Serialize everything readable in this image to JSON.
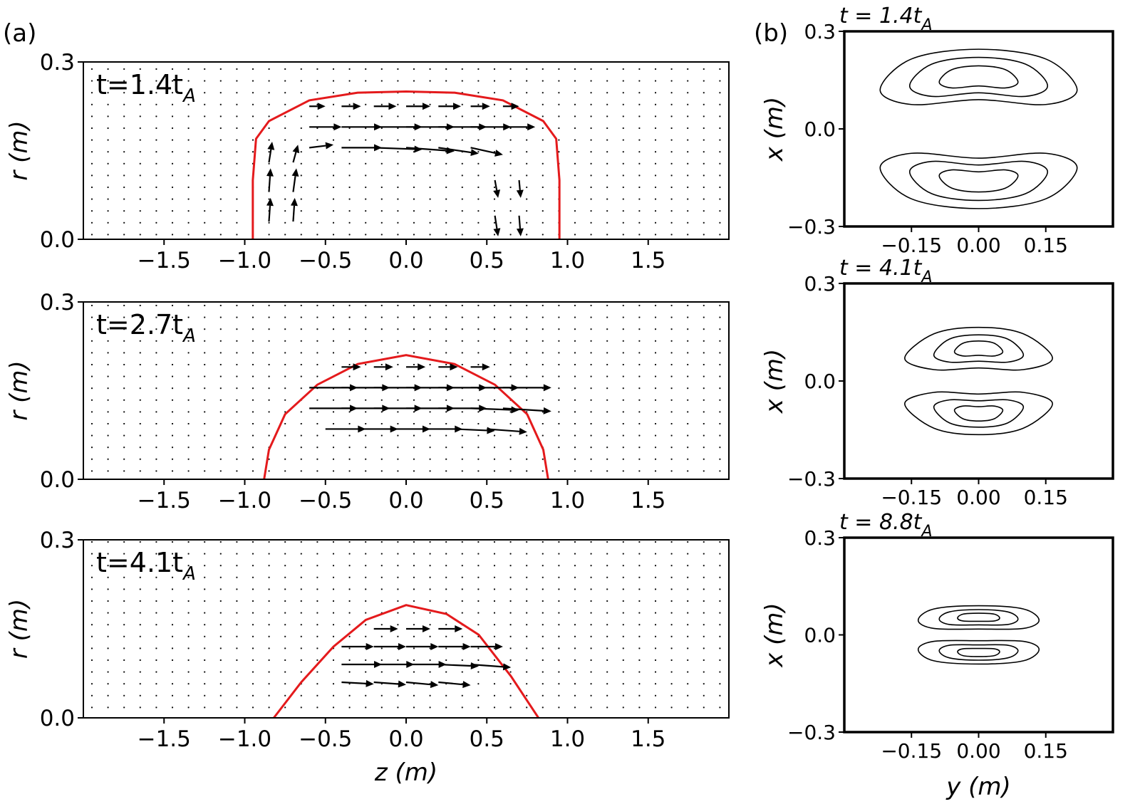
{
  "chart_data": [
    {
      "type": "quiver",
      "panel_label": "(a)",
      "annotation": "t=1.4t",
      "annotation_sub": "A",
      "ylabel": "r (m)",
      "xlim": [
        -2,
        2
      ],
      "ylim": [
        0,
        0.3
      ],
      "xticks": [
        {
          "value": -1.5,
          "label": "−1.5"
        },
        {
          "value": -1.0,
          "label": "−1.0"
        },
        {
          "value": -0.5,
          "label": "−0.5"
        },
        {
          "value": 0,
          "label": "0.0"
        },
        0.5,
        {
          "value": 1.0,
          "label": "1.0"
        },
        1.5
      ],
      "yticks": [
        {
          "value": 0,
          "label": "0.0"
        },
        0.3
      ],
      "boundary": {
        "color": "#e41a1c",
        "z": [
          -0.95,
          -0.95,
          -0.93,
          -0.85,
          -0.6,
          -0.3,
          0,
          0.3,
          0.6,
          0.85,
          0.93,
          0.95,
          0.95
        ],
        "r": [
          0,
          0.1,
          0.17,
          0.2,
          0.235,
          0.248,
          0.25,
          0.248,
          0.235,
          0.2,
          0.17,
          0.1,
          0
        ]
      },
      "arrows": {
        "color": "#000000",
        "z": [
          -0.6,
          -0.4,
          -0.2,
          0,
          0.2,
          0.4,
          0.6,
          -0.6,
          -0.4,
          -0.2,
          0,
          0.2,
          0.4,
          0.6,
          -0.6,
          -0.4,
          -0.2,
          0,
          0.2,
          0.4,
          -0.85,
          -0.85,
          -0.85,
          -0.7,
          -0.7,
          -0.7,
          0.55,
          0.55,
          0.7,
          0.7
        ],
        "r": [
          0.225,
          0.225,
          0.225,
          0.225,
          0.225,
          0.225,
          0.225,
          0.19,
          0.19,
          0.19,
          0.19,
          0.19,
          0.19,
          0.19,
          0.155,
          0.155,
          0.155,
          0.155,
          0.155,
          0.155,
          0.03,
          0.08,
          0.13,
          0.03,
          0.08,
          0.13,
          0.04,
          0.1,
          0.04,
          0.1
        ],
        "u": [
          0.1,
          0.12,
          0.14,
          0.15,
          0.14,
          0.12,
          0.1,
          0.2,
          0.25,
          0.3,
          0.3,
          0.3,
          0.25,
          0.2,
          0.15,
          0.25,
          0.3,
          0.3,
          0.25,
          0.2,
          0.01,
          0.01,
          0.02,
          0.01,
          0.02,
          0.03,
          0.02,
          0.02,
          0.01,
          0.01
        ],
        "v": [
          0,
          0,
          0,
          0,
          0,
          0,
          0,
          0,
          0,
          0,
          0,
          0,
          0,
          0,
          0.005,
          0,
          -0.003,
          -0.006,
          -0.01,
          -0.012,
          0.04,
          0.04,
          0.035,
          0.04,
          0.04,
          0.03,
          -0.035,
          -0.03,
          -0.035,
          -0.03
        ]
      }
    },
    {
      "type": "quiver",
      "annotation": "t=2.7t",
      "annotation_sub": "A",
      "ylabel": "r (m)",
      "xlim": [
        -2,
        2
      ],
      "ylim": [
        0,
        0.3
      ],
      "xticks": [
        {
          "value": -1.5,
          "label": "−1.5"
        },
        {
          "value": -1.0,
          "label": "−1.0"
        },
        {
          "value": -0.5,
          "label": "−0.5"
        },
        {
          "value": 0,
          "label": "0.0"
        },
        0.5,
        {
          "value": 1.0,
          "label": "1.0"
        },
        1.5
      ],
      "yticks": [
        {
          "value": 0,
          "label": "0.0"
        },
        0.3
      ],
      "boundary": {
        "color": "#e41a1c",
        "z": [
          -0.88,
          -0.85,
          -0.75,
          -0.55,
          -0.3,
          0,
          0.3,
          0.55,
          0.75,
          0.85,
          0.88
        ],
        "r": [
          0,
          0.05,
          0.11,
          0.16,
          0.195,
          0.21,
          0.195,
          0.16,
          0.11,
          0.05,
          0
        ]
      },
      "arrows": {
        "color": "#000000",
        "z": [
          -0.4,
          -0.2,
          0,
          0.2,
          0.4,
          -0.6,
          -0.4,
          -0.2,
          0,
          0.2,
          0.4,
          0.6,
          -0.6,
          -0.4,
          -0.2,
          0,
          0.2,
          0.4,
          0.6,
          -0.5,
          -0.3,
          -0.1,
          0.1,
          0.3,
          0.5
        ],
        "r": [
          0.19,
          0.19,
          0.19,
          0.19,
          0.19,
          0.155,
          0.155,
          0.155,
          0.155,
          0.155,
          0.155,
          0.155,
          0.12,
          0.12,
          0.12,
          0.12,
          0.12,
          0.12,
          0.12,
          0.085,
          0.085,
          0.085,
          0.085,
          0.085,
          0.085
        ],
        "u": [
          0.12,
          0.12,
          0.12,
          0.12,
          0.12,
          0.3,
          0.3,
          0.3,
          0.3,
          0.3,
          0.3,
          0.3,
          0.3,
          0.3,
          0.3,
          0.3,
          0.3,
          0.3,
          0.3,
          0.25,
          0.25,
          0.25,
          0.25,
          0.25,
          0.25
        ],
        "v": [
          0,
          0,
          0,
          0,
          0,
          0,
          0,
          0,
          0,
          0,
          0,
          0,
          0,
          0,
          0,
          0,
          0,
          -0.003,
          -0.005,
          0,
          0,
          0,
          0,
          -0.003,
          -0.005
        ]
      }
    },
    {
      "type": "quiver",
      "annotation": "t=4.1t",
      "annotation_sub": "A",
      "ylabel": "r (m)",
      "xlabel": "z (m)",
      "xlim": [
        -2,
        2
      ],
      "ylim": [
        0,
        0.3
      ],
      "xticks": [
        {
          "value": -1.5,
          "label": "−1.5"
        },
        {
          "value": -1.0,
          "label": "−1.0"
        },
        {
          "value": -0.5,
          "label": "−0.5"
        },
        {
          "value": 0,
          "label": "0.0"
        },
        0.5,
        {
          "value": 1.0,
          "label": "1.0"
        },
        1.5
      ],
      "yticks": [
        {
          "value": 0,
          "label": "0.0"
        },
        0.3
      ],
      "boundary": {
        "color": "#e41a1c",
        "z": [
          -0.82,
          -0.65,
          -0.45,
          -0.25,
          0,
          0.25,
          0.45,
          0.65,
          0.82
        ],
        "r": [
          0,
          0.06,
          0.12,
          0.165,
          0.19,
          0.175,
          0.14,
          0.07,
          0
        ]
      },
      "arrows": {
        "color": "#000000",
        "z": [
          -0.2,
          0,
          0.2,
          -0.4,
          -0.2,
          0,
          0.2,
          0.4,
          -0.4,
          -0.2,
          0,
          0.2,
          0.4,
          -0.4,
          -0.2,
          0,
          0.2
        ],
        "r": [
          0.15,
          0.15,
          0.15,
          0.12,
          0.12,
          0.12,
          0.12,
          0.12,
          0.09,
          0.09,
          0.09,
          0.09,
          0.09,
          0.06,
          0.06,
          0.06,
          0.06
        ],
        "u": [
          0.15,
          0.15,
          0.15,
          0.2,
          0.2,
          0.2,
          0.2,
          0.2,
          0.25,
          0.25,
          0.25,
          0.25,
          0.25,
          0.2,
          0.2,
          0.2,
          0.2
        ],
        "v": [
          0,
          0,
          0,
          0,
          0,
          0,
          0,
          0,
          0,
          0,
          0,
          -0.003,
          -0.005,
          -0.003,
          -0.004,
          -0.005,
          -0.005
        ]
      }
    },
    {
      "type": "contour",
      "panel_label": "(b)",
      "title": "t = 1.4t",
      "title_sub": "A",
      "ylabel": "x (m)",
      "xlim": [
        -0.3,
        0.3
      ],
      "ylim": [
        -0.3,
        0.3
      ],
      "xticks": [
        {
          "value": -0.15,
          "label": "−0.15"
        },
        {
          "value": 0,
          "label": "0.00"
        },
        0.15
      ],
      "yticks": [
        {
          "value": -0.3,
          "label": "−0.3"
        },
        {
          "value": 0,
          "label": "0.0"
        },
        0.3
      ],
      "color": "#000000",
      "contours": [
        {
          "y": [
            -0.22,
            -0.15,
            0,
            0.15,
            0.22,
            0.15,
            0,
            -0.15
          ],
          "x": [
            0.12,
            0.215,
            0.245,
            0.215,
            0.12,
            0.075,
            0.09,
            0.075
          ]
        },
        {
          "y": [
            -0.154,
            -0.105,
            0,
            0.105,
            0.154,
            0.105,
            0,
            -0.105
          ],
          "x": [
            0.132,
            0.199,
            0.22,
            0.199,
            0.132,
            0.1,
            0.111,
            0.1
          ]
        },
        {
          "y": [
            -0.088,
            -0.06,
            0,
            0.06,
            0.088,
            0.06,
            0,
            -0.06
          ],
          "x": [
            0.144,
            0.182,
            0.194,
            0.182,
            0.144,
            0.126,
            0.132,
            0.126
          ]
        },
        {
          "y": [
            -0.22,
            -0.15,
            0,
            0.15,
            0.22,
            0.15,
            0,
            -0.15
          ],
          "x": [
            -0.12,
            -0.215,
            -0.245,
            -0.215,
            -0.12,
            -0.075,
            -0.09,
            -0.075
          ]
        },
        {
          "y": [
            -0.154,
            -0.105,
            0,
            0.105,
            0.154,
            0.105,
            0,
            -0.105
          ],
          "x": [
            -0.132,
            -0.199,
            -0.22,
            -0.199,
            -0.132,
            -0.1,
            -0.111,
            -0.1
          ]
        },
        {
          "y": [
            -0.088,
            -0.06,
            0,
            0.06,
            0.088,
            0.06,
            0,
            -0.06
          ],
          "x": [
            -0.144,
            -0.182,
            -0.194,
            -0.182,
            -0.144,
            -0.126,
            -0.132,
            -0.126
          ]
        }
      ]
    },
    {
      "type": "contour",
      "title": "t = 4.1t",
      "title_sub": "A",
      "ylabel": "x (m)",
      "xlim": [
        -0.3,
        0.3
      ],
      "ylim": [
        -0.3,
        0.3
      ],
      "xticks": [
        {
          "value": -0.15,
          "label": "−0.15"
        },
        {
          "value": 0,
          "label": "0.00"
        },
        0.15
      ],
      "yticks": [
        {
          "value": -0.3,
          "label": "−0.3"
        },
        {
          "value": 0,
          "label": "0.0"
        },
        0.3
      ],
      "color": "#000000",
      "contours": [
        {
          "y": [
            -0.165,
            -0.1,
            0,
            0.1,
            0.165,
            0.1,
            0,
            -0.1
          ],
          "x": [
            0.07,
            0.145,
            0.165,
            0.145,
            0.07,
            0.035,
            0.04,
            0.035
          ]
        },
        {
          "y": [
            -0.1,
            -0.065,
            0,
            0.065,
            0.1,
            0.065,
            0,
            -0.065
          ],
          "x": [
            0.08,
            0.129,
            0.142,
            0.129,
            0.08,
            0.058,
            0.061,
            0.058
          ]
        },
        {
          "y": [
            -0.054,
            -0.035,
            0,
            0.035,
            0.054,
            0.035,
            0,
            -0.035
          ],
          "x": [
            0.09,
            0.116,
            0.123,
            0.116,
            0.09,
            0.077,
            0.079,
            0.077
          ]
        },
        {
          "y": [
            -0.165,
            -0.1,
            0,
            0.1,
            0.165,
            0.1,
            0,
            -0.1
          ],
          "x": [
            -0.07,
            -0.145,
            -0.165,
            -0.145,
            -0.07,
            -0.035,
            -0.04,
            -0.035
          ]
        },
        {
          "y": [
            -0.1,
            -0.065,
            0,
            0.065,
            0.1,
            0.065,
            0,
            -0.065
          ],
          "x": [
            -0.08,
            -0.129,
            -0.142,
            -0.129,
            -0.08,
            -0.058,
            -0.061,
            -0.058
          ]
        },
        {
          "y": [
            -0.054,
            -0.035,
            0,
            0.035,
            0.054,
            0.035,
            0,
            -0.035
          ],
          "x": [
            -0.09,
            -0.116,
            -0.123,
            -0.116,
            -0.09,
            -0.077,
            -0.079,
            -0.077
          ]
        }
      ]
    },
    {
      "type": "contour",
      "title": "t = 8.8t",
      "title_sub": "A",
      "ylabel": "x (m)",
      "xlabel": "y (m)",
      "xlim": [
        -0.3,
        0.3
      ],
      "ylim": [
        -0.3,
        0.3
      ],
      "xticks": [
        {
          "value": -0.15,
          "label": "−0.15"
        },
        {
          "value": 0,
          "label": "0.00"
        },
        0.15
      ],
      "yticks": [
        {
          "value": -0.3,
          "label": "−0.3"
        },
        {
          "value": 0,
          "label": "0.0"
        },
        0.3
      ],
      "color": "#000000",
      "contours": [
        {
          "y": [
            -0.135,
            -0.1,
            0,
            0.1,
            0.135,
            0.1,
            0,
            -0.1
          ],
          "x": [
            0.045,
            0.08,
            0.09,
            0.08,
            0.045,
            0.02,
            0.018,
            0.02
          ]
        },
        {
          "y": [
            -0.088,
            -0.065,
            0,
            0.065,
            0.088,
            0.065,
            0,
            -0.065
          ],
          "x": [
            0.049,
            0.071,
            0.078,
            0.071,
            0.049,
            0.032,
            0.031,
            0.032
          ]
        },
        {
          "y": [
            -0.047,
            -0.035,
            0,
            0.035,
            0.047,
            0.035,
            0,
            -0.035
          ],
          "x": [
            0.052,
            0.064,
            0.067,
            0.064,
            0.052,
            0.043,
            0.042,
            0.043
          ]
        },
        {
          "y": [
            -0.135,
            -0.1,
            0,
            0.1,
            0.135,
            0.1,
            0,
            -0.1
          ],
          "x": [
            -0.045,
            -0.08,
            -0.09,
            -0.08,
            -0.045,
            -0.02,
            -0.018,
            -0.02
          ]
        },
        {
          "y": [
            -0.088,
            -0.065,
            0,
            0.065,
            0.088,
            0.065,
            0,
            -0.065
          ],
          "x": [
            -0.049,
            -0.071,
            -0.078,
            -0.071,
            -0.049,
            -0.032,
            -0.031,
            -0.032
          ]
        },
        {
          "y": [
            -0.047,
            -0.035,
            0,
            0.035,
            0.047,
            0.035,
            0,
            -0.035
          ],
          "x": [
            -0.052,
            -0.064,
            -0.067,
            -0.064,
            -0.052,
            -0.043,
            -0.042,
            -0.043
          ]
        }
      ]
    }
  ]
}
